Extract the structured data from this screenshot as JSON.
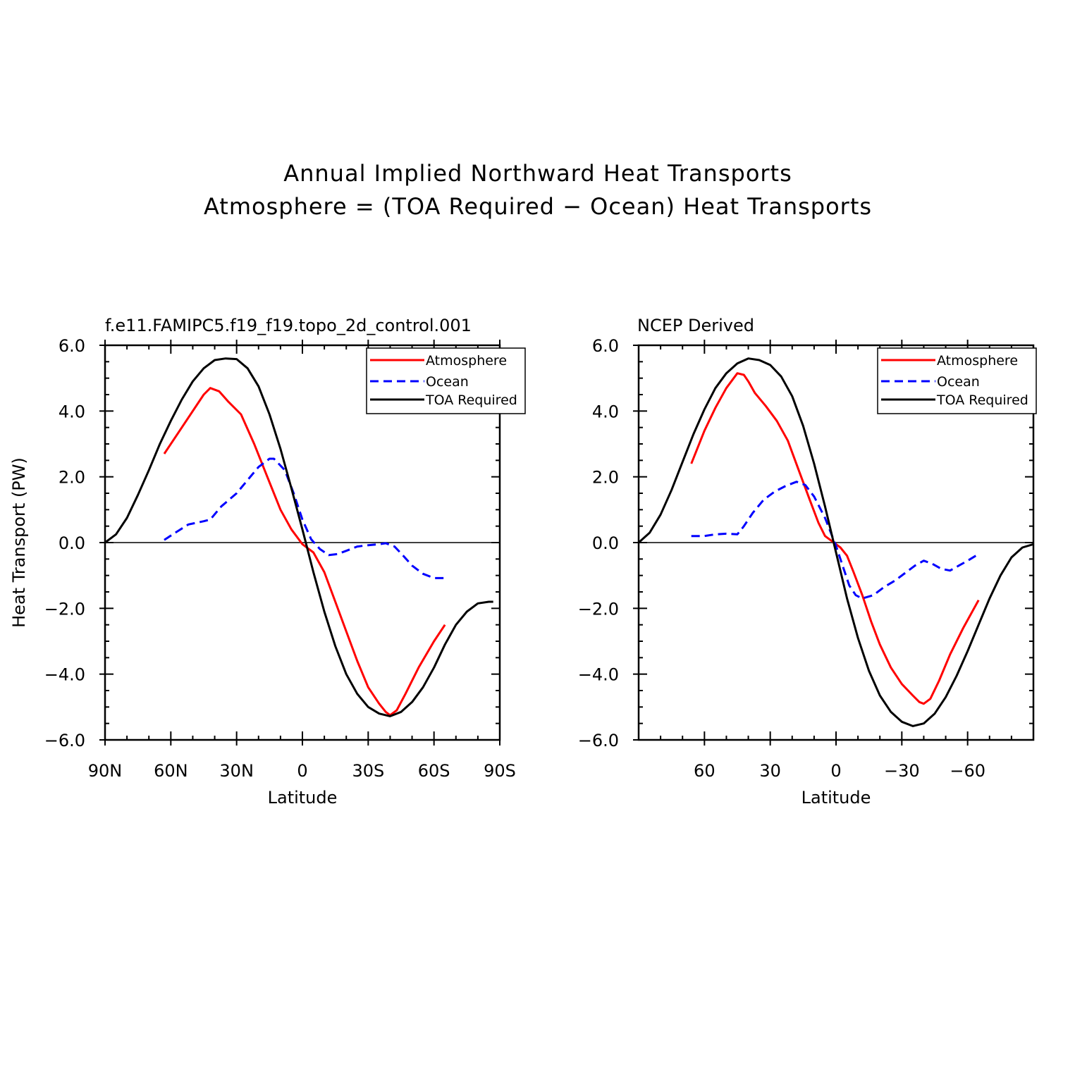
{
  "figure": {
    "title_line1": "Annual Implied Northward Heat Transports",
    "title_line2": "Atmosphere = (TOA Required − Ocean) Heat Transports"
  },
  "colors": {
    "atmosphere": "#ff0000",
    "ocean": "#0000ff",
    "toa": "#000000"
  },
  "chart_data": [
    {
      "type": "line",
      "panel_label": "f.e11.FAMIPC5.f19_f19.topo_2d_control.001",
      "xlabel": "Latitude",
      "ylabel": "Heat Transport (PW)",
      "xlim": [
        90,
        -90
      ],
      "ylim": [
        -6,
        6
      ],
      "x_ticks": [
        90,
        60,
        30,
        0,
        -30,
        -60,
        -90
      ],
      "x_tick_labels": [
        "90N",
        "60N",
        "30N",
        "0",
        "30S",
        "60S",
        "90S"
      ],
      "y_ticks": [
        6,
        4,
        2,
        0,
        -2,
        -4,
        -6
      ],
      "y_tick_labels": [
        "6.0",
        "4.0",
        "2.0",
        "0.0",
        "−2.0",
        "−4.0",
        "−6.0"
      ],
      "legend": [
        "Atmosphere",
        "Ocean",
        "TOA Required"
      ],
      "legend_position": "top-right",
      "zero_line": true,
      "series": [
        {
          "name": "Atmosphere",
          "style": "solid",
          "color": "#ff0000",
          "points": [
            [
              63,
              2.7
            ],
            [
              55,
              3.5
            ],
            [
              45,
              4.5
            ],
            [
              42,
              4.7
            ],
            [
              38,
              4.6
            ],
            [
              34,
              4.3
            ],
            [
              28,
              3.9
            ],
            [
              22,
              3.0
            ],
            [
              16,
              2.0
            ],
            [
              10,
              1.0
            ],
            [
              5,
              0.4
            ],
            [
              0,
              -0.05
            ],
            [
              -5,
              -0.3
            ],
            [
              -10,
              -0.9
            ],
            [
              -15,
              -1.8
            ],
            [
              -20,
              -2.7
            ],
            [
              -25,
              -3.6
            ],
            [
              -30,
              -4.4
            ],
            [
              -35,
              -4.9
            ],
            [
              -38,
              -5.15
            ],
            [
              -40,
              -5.25
            ],
            [
              -43,
              -5.1
            ],
            [
              -47,
              -4.6
            ],
            [
              -53,
              -3.8
            ],
            [
              -60,
              -3.0
            ],
            [
              -65,
              -2.5
            ]
          ]
        },
        {
          "name": "Ocean",
          "style": "dashed",
          "color": "#0000ff",
          "points": [
            [
              63,
              0.08
            ],
            [
              58,
              0.3
            ],
            [
              52,
              0.55
            ],
            [
              45,
              0.65
            ],
            [
              42,
              0.7
            ],
            [
              37,
              1.1
            ],
            [
              30,
              1.5
            ],
            [
              25,
              1.9
            ],
            [
              20,
              2.3
            ],
            [
              15,
              2.55
            ],
            [
              13,
              2.55
            ],
            [
              8,
              2.2
            ],
            [
              4,
              1.5
            ],
            [
              0,
              0.7
            ],
            [
              -4,
              0.1
            ],
            [
              -8,
              -0.2
            ],
            [
              -12,
              -0.38
            ],
            [
              -16,
              -0.35
            ],
            [
              -20,
              -0.25
            ],
            [
              -25,
              -0.12
            ],
            [
              -30,
              -0.08
            ],
            [
              -35,
              -0.05
            ],
            [
              -38,
              -0.02
            ],
            [
              -42,
              -0.12
            ],
            [
              -46,
              -0.4
            ],
            [
              -50,
              -0.7
            ],
            [
              -55,
              -0.95
            ],
            [
              -60,
              -1.08
            ],
            [
              -65,
              -1.08
            ]
          ]
        },
        {
          "name": "TOA Required",
          "style": "solid",
          "color": "#000000",
          "points": [
            [
              90,
              0.0
            ],
            [
              85,
              0.25
            ],
            [
              80,
              0.75
            ],
            [
              75,
              1.45
            ],
            [
              70,
              2.2
            ],
            [
              65,
              3.0
            ],
            [
              60,
              3.7
            ],
            [
              55,
              4.35
            ],
            [
              50,
              4.9
            ],
            [
              45,
              5.3
            ],
            [
              40,
              5.55
            ],
            [
              35,
              5.6
            ],
            [
              30,
              5.58
            ],
            [
              25,
              5.3
            ],
            [
              20,
              4.75
            ],
            [
              15,
              3.9
            ],
            [
              10,
              2.85
            ],
            [
              5,
              1.65
            ],
            [
              0,
              0.4
            ],
            [
              -5,
              -0.9
            ],
            [
              -10,
              -2.1
            ],
            [
              -15,
              -3.15
            ],
            [
              -20,
              -4.0
            ],
            [
              -25,
              -4.6
            ],
            [
              -30,
              -5.0
            ],
            [
              -35,
              -5.2
            ],
            [
              -40,
              -5.28
            ],
            [
              -45,
              -5.15
            ],
            [
              -50,
              -4.85
            ],
            [
              -55,
              -4.4
            ],
            [
              -60,
              -3.8
            ],
            [
              -65,
              -3.1
            ],
            [
              -70,
              -2.5
            ],
            [
              -75,
              -2.1
            ],
            [
              -80,
              -1.85
            ],
            [
              -85,
              -1.8
            ],
            [
              -87,
              -1.8
            ]
          ]
        }
      ]
    },
    {
      "type": "line",
      "panel_label": "NCEP Derived",
      "xlabel": "Latitude",
      "ylabel": "",
      "xlim": [
        90,
        -90
      ],
      "ylim": [
        -6,
        6
      ],
      "x_ticks": [
        60,
        30,
        0,
        -30,
        -60
      ],
      "x_tick_labels": [
        "60",
        "30",
        "0",
        "−30",
        "−60"
      ],
      "y_ticks": [
        6,
        4,
        2,
        0,
        -2,
        -4,
        -6
      ],
      "y_tick_labels": [
        "6.0",
        "4.0",
        "2.0",
        "0.0",
        "−2.0",
        "−4.0",
        "−6.0"
      ],
      "legend": [
        "Atmosphere",
        "Ocean",
        "TOA Required"
      ],
      "legend_position": "top-right",
      "zero_line": true,
      "series": [
        {
          "name": "Atmosphere",
          "style": "solid",
          "color": "#ff0000",
          "points": [
            [
              66,
              2.4
            ],
            [
              60,
              3.4
            ],
            [
              55,
              4.1
            ],
            [
              50,
              4.7
            ],
            [
              45,
              5.15
            ],
            [
              42,
              5.1
            ],
            [
              40,
              4.9
            ],
            [
              37,
              4.55
            ],
            [
              32,
              4.15
            ],
            [
              27,
              3.7
            ],
            [
              22,
              3.1
            ],
            [
              17,
              2.2
            ],
            [
              12,
              1.3
            ],
            [
              8,
              0.6
            ],
            [
              5,
              0.2
            ],
            [
              2,
              0.05
            ],
            [
              0,
              -0.05
            ],
            [
              -2,
              -0.15
            ],
            [
              -5,
              -0.4
            ],
            [
              -8,
              -0.9
            ],
            [
              -12,
              -1.6
            ],
            [
              -16,
              -2.4
            ],
            [
              -20,
              -3.1
            ],
            [
              -25,
              -3.8
            ],
            [
              -30,
              -4.3
            ],
            [
              -35,
              -4.65
            ],
            [
              -38,
              -4.85
            ],
            [
              -40,
              -4.9
            ],
            [
              -43,
              -4.75
            ],
            [
              -47,
              -4.2
            ],
            [
              -52,
              -3.4
            ],
            [
              -58,
              -2.6
            ],
            [
              -65,
              -1.75
            ]
          ]
        },
        {
          "name": "Ocean",
          "style": "dashed",
          "color": "#0000ff",
          "points": [
            [
              66,
              0.2
            ],
            [
              60,
              0.2
            ],
            [
              55,
              0.25
            ],
            [
              50,
              0.27
            ],
            [
              45,
              0.25
            ],
            [
              42,
              0.5
            ],
            [
              38,
              0.9
            ],
            [
              33,
              1.3
            ],
            [
              28,
              1.55
            ],
            [
              23,
              1.72
            ],
            [
              18,
              1.85
            ],
            [
              14,
              1.75
            ],
            [
              10,
              1.4
            ],
            [
              5,
              0.75
            ],
            [
              0,
              -0.1
            ],
            [
              -3,
              -0.7
            ],
            [
              -6,
              -1.3
            ],
            [
              -9,
              -1.6
            ],
            [
              -12,
              -1.7
            ],
            [
              -17,
              -1.6
            ],
            [
              -22,
              -1.35
            ],
            [
              -27,
              -1.15
            ],
            [
              -32,
              -0.9
            ],
            [
              -36,
              -0.7
            ],
            [
              -40,
              -0.55
            ],
            [
              -44,
              -0.65
            ],
            [
              -48,
              -0.8
            ],
            [
              -52,
              -0.85
            ],
            [
              -56,
              -0.7
            ],
            [
              -60,
              -0.55
            ],
            [
              -65,
              -0.35
            ]
          ]
        },
        {
          "name": "TOA Required",
          "style": "solid",
          "color": "#000000",
          "points": [
            [
              90,
              0.0
            ],
            [
              85,
              0.3
            ],
            [
              80,
              0.85
            ],
            [
              75,
              1.6
            ],
            [
              70,
              2.45
            ],
            [
              65,
              3.3
            ],
            [
              60,
              4.05
            ],
            [
              55,
              4.7
            ],
            [
              50,
              5.15
            ],
            [
              45,
              5.45
            ],
            [
              40,
              5.6
            ],
            [
              35,
              5.55
            ],
            [
              30,
              5.4
            ],
            [
              25,
              5.05
            ],
            [
              20,
              4.45
            ],
            [
              15,
              3.55
            ],
            [
              10,
              2.4
            ],
            [
              5,
              1.1
            ],
            [
              0,
              -0.3
            ],
            [
              -5,
              -1.7
            ],
            [
              -10,
              -2.9
            ],
            [
              -15,
              -3.9
            ],
            [
              -20,
              -4.65
            ],
            [
              -25,
              -5.15
            ],
            [
              -30,
              -5.45
            ],
            [
              -35,
              -5.58
            ],
            [
              -40,
              -5.5
            ],
            [
              -45,
              -5.2
            ],
            [
              -50,
              -4.7
            ],
            [
              -55,
              -4.05
            ],
            [
              -60,
              -3.3
            ],
            [
              -65,
              -2.5
            ],
            [
              -70,
              -1.7
            ],
            [
              -75,
              -1.0
            ],
            [
              -80,
              -0.45
            ],
            [
              -85,
              -0.15
            ],
            [
              -90,
              -0.05
            ]
          ]
        }
      ]
    }
  ]
}
